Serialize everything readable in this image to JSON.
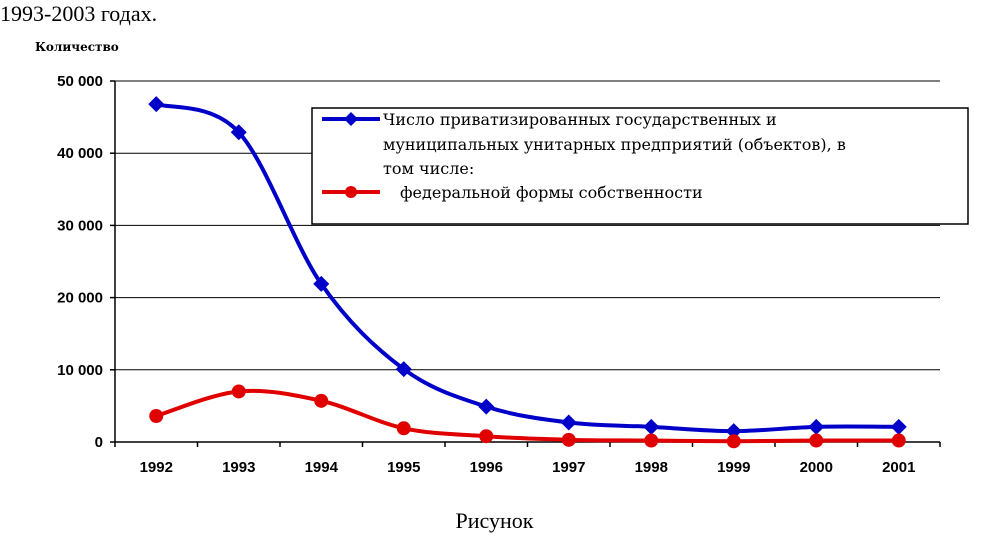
{
  "page": {
    "heading": "1993-2003 годах.",
    "caption": "Рисунок"
  },
  "chart_data": {
    "type": "line",
    "ylabel": "Количество",
    "xlabel": "",
    "title": "",
    "categories": [
      "1992",
      "1993",
      "1994",
      "1995",
      "1996",
      "1997",
      "1998",
      "1999",
      "2000",
      "2001"
    ],
    "ylim": [
      0,
      50000
    ],
    "yticks": [
      0,
      10000,
      20000,
      30000,
      40000,
      50000
    ],
    "ytick_labels": [
      "0",
      "10 000",
      "20 000",
      "30 000",
      "40 000",
      "50 000"
    ],
    "grid": true,
    "legend_position": "top-right",
    "series": [
      {
        "name": "Число приватизированных государственных и муниципальных унитарных предприятий (объектов), в том числе:",
        "legend_lines": [
          "Число приватизированных государственных и",
          "муниципальных унитарных предприятий (объектов), в",
          "том числе:"
        ],
        "color": "#0000c8",
        "marker": "diamond",
        "values": [
          46800,
          42900,
          21900,
          10100,
          4900,
          2700,
          2100,
          1500,
          2100,
          2100
        ]
      },
      {
        "name": "федеральной формы собственности",
        "legend_lines": [
          "федеральной формы собственности"
        ],
        "color": "#e00000",
        "marker": "circle",
        "values": [
          3600,
          7000,
          5700,
          1900,
          800,
          300,
          200,
          100,
          200,
          200
        ]
      }
    ]
  }
}
